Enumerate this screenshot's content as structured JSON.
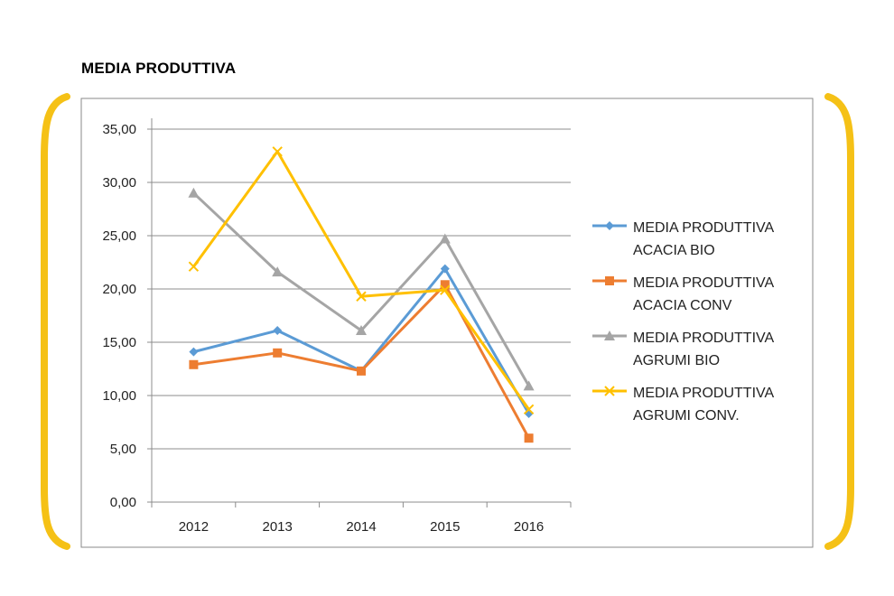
{
  "page": {
    "title": "MEDIA PRODUTTIVA",
    "bracket_color": "#F5C116"
  },
  "chart_data": {
    "type": "line",
    "title": "",
    "xlabel": "",
    "ylabel": "",
    "categories": [
      "2012",
      "2013",
      "2014",
      "2015",
      "2016"
    ],
    "ylim": [
      0,
      35
    ],
    "ytick_labels": [
      "0,00",
      "5,00",
      "10,00",
      "15,00",
      "20,00",
      "25,00",
      "30,00",
      "35,00"
    ],
    "grid": true,
    "legend_position": "right",
    "series": [
      {
        "name_lines": [
          "MEDIA PRODUTTIVA",
          "ACACIA BIO"
        ],
        "color": "#5B9BD5",
        "marker": "diamond",
        "values": [
          14.1,
          16.1,
          12.3,
          21.9,
          8.3
        ]
      },
      {
        "name_lines": [
          "MEDIA PRODUTTIVA",
          "ACACIA CONV"
        ],
        "color": "#ED7D31",
        "marker": "square",
        "values": [
          12.9,
          14.0,
          12.3,
          20.4,
          6.0
        ]
      },
      {
        "name_lines": [
          "MEDIA PRODUTTIVA",
          "AGRUMI BIO"
        ],
        "color": "#A5A5A5",
        "marker": "triangle",
        "values": [
          29.0,
          21.6,
          16.1,
          24.7,
          10.9
        ]
      },
      {
        "name_lines": [
          "MEDIA PRODUTTIVA",
          "AGRUMI CONV."
        ],
        "color": "#FFC000",
        "marker": "x",
        "values": [
          22.1,
          32.9,
          19.3,
          19.9,
          8.7
        ]
      }
    ]
  }
}
